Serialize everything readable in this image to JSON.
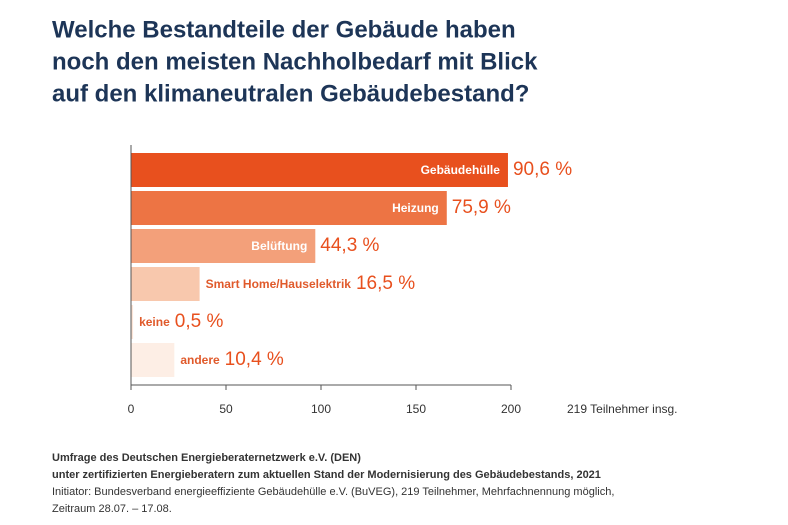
{
  "chart_data": {
    "type": "bar",
    "orientation": "horizontal",
    "title": [
      "Welche Bestandteile der Gebäude haben",
      "noch den meisten Nachholbedarf mit Blick",
      "auf den klimaneutralen Gebäudebestand?"
    ],
    "categories": [
      "Gebäudehülle",
      "Heizung",
      "Belüftung",
      "Smart Home/Hauselektrik",
      "keine",
      "andere"
    ],
    "values": [
      198.4,
      166.2,
      97.0,
      36.1,
      1.1,
      22.8
    ],
    "value_labels": [
      "90,6 %",
      "75,9 %",
      "44,3 %",
      "16,5 %",
      "0,5 %",
      "10,4 %"
    ],
    "colors": [
      "#e8501e",
      "#ed7444",
      "#f3a07a",
      "#f8c8ad",
      "#fce5d8",
      "#fdeee5"
    ],
    "xlim": [
      0,
      200
    ],
    "xticks": [
      0,
      50,
      100,
      150,
      200
    ],
    "axis_note": "219 Teilnehmer insg.",
    "footer": [
      "Umfrage des Deutschen Energieberaternetzwerk e.V. (DEN)",
      "unter zertifizierten Energieberatern zum aktuellen Stand der Modernisierung des Gebäudebestands, 2021",
      "Initiator: Bundesverband energieeffiziente Gebäudehülle e.V. (BuVEG), 219 Teilnehmer, Mehrfachnennung möglich,",
      "Zeitraum 28.07. – 17.08."
    ]
  }
}
